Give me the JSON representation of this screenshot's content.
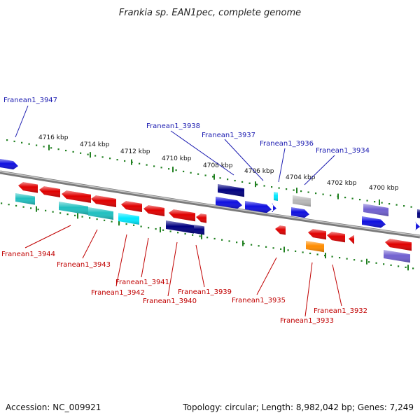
{
  "title": "Frankia sp. EAN1pec, complete genome",
  "footer": {
    "accession": "Accession: NC_009921",
    "topology": "Topology: circular; Length: 8,982,042 bp; Genes: 7,249"
  },
  "scale_labels": [
    "4716 kbp",
    "4714 kbp",
    "4712 kbp",
    "4710 kbp",
    "4708 kbp",
    "4706 kbp",
    "4704 kbp",
    "4702 kbp",
    "4700 kbp"
  ],
  "colors": {
    "red": "#e00000",
    "blue": "#1010e0",
    "navy": "#000080",
    "teal": "#20c0c0",
    "cyan": "#00e8ff",
    "gray": "#b8b8b8",
    "orange": "#ff8c00",
    "purple": "#7060d0",
    "backbone": "#808080",
    "scale": "#208020"
  },
  "top_labels": [
    {
      "text": "Franean1_3947"
    },
    {
      "text": "Franean1_3938"
    },
    {
      "text": "Franean1_3937"
    },
    {
      "text": "Franean1_3936"
    },
    {
      "text": "Franean1_3934"
    }
  ],
  "bottom_labels": [
    {
      "text": "Franean1_3944"
    },
    {
      "text": "Franean1_3943"
    },
    {
      "text": "Franean1_3942"
    },
    {
      "text": "Franean1_3941"
    },
    {
      "text": "Franean1_3940"
    },
    {
      "text": "Franean1_3939"
    },
    {
      "text": "Franean1_3935"
    },
    {
      "text": "Franean1_3933"
    },
    {
      "text": "Franean1_3932"
    }
  ]
}
